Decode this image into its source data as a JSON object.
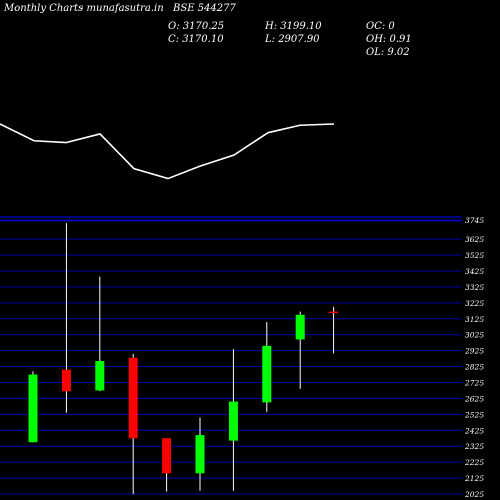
{
  "header": {
    "title": "Monthly Charts",
    "source": "- munafasutra.in",
    "symbol": "BSE 544277",
    "open_label": "O: 3170.25",
    "close_label": "C: 3170.10",
    "high_label": "H: 3199.10",
    "low_label": "L: 2907.90",
    "oc_label": "OC: 0",
    "oh_label": "OH: 0.91",
    "ol_label": "OL: 9.02"
  },
  "colors": {
    "background": "#000000",
    "up": "#00ff00",
    "down": "#ff0000",
    "gridline": "#0000aa",
    "line": "#ffffff",
    "wick": "#ffffff"
  },
  "chart_data": {
    "type": "candlestick",
    "ylim": [
      2025,
      3745
    ],
    "tick_labels": [
      "3745",
      "3625",
      "3525",
      "3425",
      "3325",
      "3225",
      "3125",
      "3025",
      "2925",
      "2825",
      "2725",
      "2625",
      "2525",
      "2425",
      "2325",
      "2225",
      "2125",
      "2025"
    ],
    "candles": [
      {
        "open": 2350,
        "close": 2775,
        "high": 2795,
        "low": 2350
      },
      {
        "open": 2805,
        "close": 2670,
        "high": 3725,
        "low": 2535
      },
      {
        "open": 2675,
        "close": 2860,
        "high": 3390,
        "low": 2670
      },
      {
        "open": 2880,
        "close": 2375,
        "high": 2905,
        "low": 2025
      },
      {
        "open": 2375,
        "close": 2155,
        "high": 2375,
        "low": 2040
      },
      {
        "open": 2155,
        "close": 2395,
        "high": 2505,
        "low": 2045
      },
      {
        "open": 2360,
        "close": 2605,
        "high": 2935,
        "low": 2045
      },
      {
        "open": 2600,
        "close": 2955,
        "high": 3105,
        "low": 2540
      },
      {
        "open": 2995,
        "close": 3150,
        "high": 3170,
        "low": 2685
      },
      {
        "open": 3170.25,
        "close": 3170.1,
        "high": 3199.1,
        "low": 2907.9
      }
    ],
    "overlay_line": [
      0.0,
      0.27,
      0.3,
      0.16,
      0.72,
      0.88,
      0.68,
      0.5,
      0.14,
      0.02,
      0.0
    ]
  }
}
